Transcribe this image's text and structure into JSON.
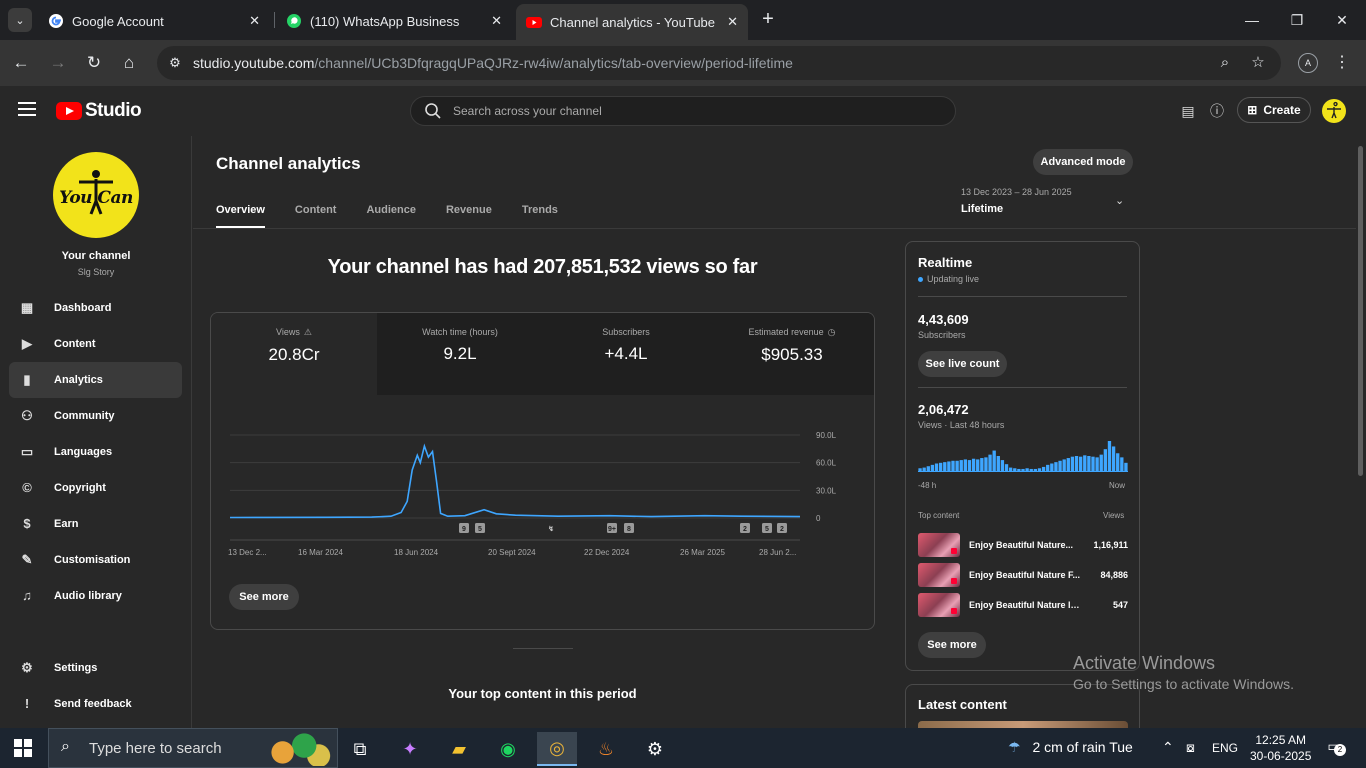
{
  "browser": {
    "tabs": [
      {
        "title": "Google Account",
        "favicon": "google-icon"
      },
      {
        "title": "(110) WhatsApp Business",
        "favicon": "whatsapp-icon"
      },
      {
        "title": "Channel analytics - YouTube Studio",
        "favicon": "youtube-icon"
      }
    ],
    "url_host": "studio.youtube.com",
    "url_path": "/channel/UCb3DfqragqUPaQJRz-rw4iw/analytics/tab-overview/period-lifetime",
    "profile_initial": "A"
  },
  "header": {
    "logo_text": "Studio",
    "search_placeholder": "Search across your channel",
    "create_label": "Create"
  },
  "sidebar": {
    "avatar_text": "You Can",
    "your_channel": "Your channel",
    "channel_name": "Slg Story",
    "items": [
      {
        "label": "Dashboard",
        "icon": "dashboard-icon"
      },
      {
        "label": "Content",
        "icon": "content-icon"
      },
      {
        "label": "Analytics",
        "icon": "analytics-icon"
      },
      {
        "label": "Community",
        "icon": "community-icon"
      },
      {
        "label": "Languages",
        "icon": "languages-icon"
      },
      {
        "label": "Copyright",
        "icon": "copyright-icon"
      },
      {
        "label": "Earn",
        "icon": "earn-icon"
      },
      {
        "label": "Customisation",
        "icon": "customisation-icon"
      },
      {
        "label": "Audio library",
        "icon": "audio-library-icon"
      }
    ],
    "settings": "Settings",
    "feedback": "Send feedback"
  },
  "analytics": {
    "title": "Channel analytics",
    "advanced_mode": "Advanced mode",
    "tabs": [
      "Overview",
      "Content",
      "Audience",
      "Revenue",
      "Trends"
    ],
    "range_dates": "13 Dec 2023 – 28 Jun 2025",
    "range_period": "Lifetime",
    "headline": "Your channel has had 207,851,532 views so far",
    "metrics": [
      {
        "label": "Views",
        "value": "20.8Cr"
      },
      {
        "label": "Watch time (hours)",
        "value": "9.2L"
      },
      {
        "label": "Subscribers",
        "value": "+4.4L"
      },
      {
        "label": "Estimated revenue",
        "value": "$905.33"
      }
    ],
    "see_more": "See more",
    "top_content_title": "Your top content in this period"
  },
  "chart_data": {
    "type": "line",
    "x": [
      "13 Dec 2023",
      "15 Jan 2024",
      "16 Mar 2024",
      "1 May 2024",
      "20 May 2024",
      "30 May 2024",
      "5 Jun 2024",
      "10 Jun 2024",
      "15 Jun 2024",
      "18 Jun 2024",
      "22 Jun 2024",
      "26 Jun 2024",
      "30 Jun 2024",
      "4 Jul 2024",
      "8 Jul 2024",
      "15 Jul 2024",
      "1 Aug 2024",
      "20 Aug 2024",
      "1 Sept 2024",
      "20 Sept 2024",
      "1 Nov 2024",
      "22 Dec 2024",
      "1 Feb 2025",
      "26 Mar 2025",
      "1 May 2025",
      "28 Jun 2025"
    ],
    "series": [
      {
        "values": [
          0.5,
          0.6,
          0.8,
          1.0,
          2.0,
          6.0,
          18.0,
          52.0,
          68.0,
          60.0,
          78.0,
          66.0,
          72.0,
          40.0,
          5.0,
          2.0,
          2.5,
          9.0,
          4.5,
          3.0,
          2.0,
          2.5,
          1.5,
          2.5,
          2.0,
          1.5
        ]
      }
    ],
    "x_ticks": [
      "13 Dec 2...",
      "16 Mar 2024",
      "18 Jun 2024",
      "20 Sept 2024",
      "22 Dec 2024",
      "26 Mar 2025",
      "28 Jun 2..."
    ],
    "y_ticks": [
      "0",
      "30.0L",
      "60.0L",
      "90.0L"
    ],
    "ylim": [
      0,
      90
    ],
    "markers": [
      "9",
      "5",
      "",
      "9+",
      "8",
      "2",
      "5",
      "2"
    ],
    "color": "#3ea6ff"
  },
  "realtime": {
    "title": "Realtime",
    "live": "Updating live",
    "subscribers_value": "4,43,609",
    "subscribers_label": "Subscribers",
    "see_live_count": "See live count",
    "views_value": "2,06,472",
    "views_label": "Views · Last 48 hours",
    "bars": [
      4,
      5,
      7,
      9,
      11,
      12,
      13,
      14,
      15,
      15,
      16,
      17,
      16,
      18,
      17,
      19,
      20,
      24,
      30,
      22,
      16,
      10,
      5,
      4,
      3,
      3,
      4,
      3,
      3,
      4,
      6,
      9,
      11,
      13,
      15,
      17,
      19,
      21,
      22,
      21,
      23,
      22,
      21,
      20,
      24,
      32,
      44,
      36,
      26,
      20,
      12
    ],
    "axis_left": "-48 h",
    "axis_right": "Now",
    "top_content_label": "Top content",
    "views_col": "Views",
    "items": [
      {
        "title": "Enjoy Beautiful Nature...",
        "views": "1,16,911"
      },
      {
        "title": "Enjoy Beautiful Nature F...",
        "views": "84,886"
      },
      {
        "title": "Enjoy Beautiful Nature life ...",
        "views": "547"
      }
    ],
    "see_more": "See more"
  },
  "latest": {
    "title": "Latest content"
  },
  "watermark": {
    "line1": "Activate Windows",
    "line2": "Go to Settings to activate Windows."
  },
  "taskbar": {
    "search_placeholder": "Type here to search",
    "weather": "2 cm of rain  Tue",
    "lang": "ENG",
    "time": "12:25 AM",
    "date": "30-06-2025",
    "notifications": "2"
  }
}
